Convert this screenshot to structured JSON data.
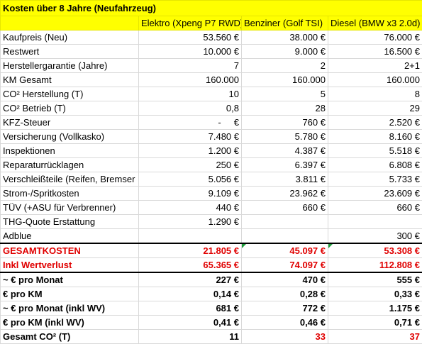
{
  "sheet": {
    "title": "Kosten über 8 Jahre (Neufahrzeug)",
    "columns": [
      "Elektro (Xpeng P7 RWD)",
      "Benziner (Golf TSI)",
      "Diesel (BMW x3 2.0d)"
    ],
    "rows": [
      {
        "label": "Kaufpreis (Neu)",
        "cells": [
          "53.560 €",
          "38.000 €",
          "76.000 €"
        ]
      },
      {
        "label": "Restwert",
        "cells": [
          "10.000 €",
          "9.000 €",
          "16.500 €"
        ]
      },
      {
        "label": "Herstellergarantie (Jahre)",
        "cells": [
          "7",
          "2",
          "2+1"
        ]
      },
      {
        "label": "KM Gesamt",
        "cells": [
          "160.000",
          "160.000",
          "160.000"
        ]
      },
      {
        "label": "CO² Herstellung (T)",
        "cells": [
          "10",
          "5",
          "8"
        ]
      },
      {
        "label": "CO² Betrieb (T)",
        "cells": [
          "0,8",
          "28",
          "29"
        ]
      },
      {
        "label": "KFZ-Steuer",
        "cells": [
          "-     €",
          "760 €",
          "2.520 €"
        ]
      },
      {
        "label": "Versicherung (Vollkasko)",
        "cells": [
          "7.480 €",
          "5.780 €",
          "8.160 €"
        ]
      },
      {
        "label": "Inspektionen",
        "cells": [
          "1.200 €",
          "4.387 €",
          "5.518 €"
        ]
      },
      {
        "label": "Reparaturrücklagen",
        "cells": [
          "250 €",
          "6.397 €",
          "6.808 €"
        ]
      },
      {
        "label": "Verschleißteile (Reifen, Bremser",
        "cells": [
          "5.056 €",
          "3.811 €",
          "5.733 €"
        ]
      },
      {
        "label": "Strom-/Spritkosten",
        "cells": [
          "9.109 €",
          "23.962 €",
          "23.609 €"
        ]
      },
      {
        "label": "TÜV (+ASU für Verbrenner)",
        "cells": [
          "440 €",
          "660 €",
          "660 €"
        ]
      },
      {
        "label": "THG-Quote Erstattung",
        "cells": [
          "1.290 €",
          null,
          null
        ]
      },
      {
        "label": "Adblue",
        "cells": [
          null,
          null,
          "300 €"
        ]
      },
      {
        "label": "GESAMTKOSTEN",
        "cells": [
          "21.805 €",
          "45.097 €",
          "53.308 €"
        ],
        "bold": true,
        "color": "#e00000"
      },
      {
        "label": "Inkl Wertverlust",
        "cells": [
          "65.365 €",
          "74.097 €",
          "112.808 €"
        ],
        "bold": true,
        "color": "#e00000"
      },
      {
        "label": "~ € pro Monat",
        "cells": [
          "227 €",
          "470 €",
          "555 €"
        ],
        "bold": true
      },
      {
        "label": "€ pro KM",
        "cells": [
          "0,14 €",
          "0,28 €",
          "0,33 €"
        ],
        "bold": true
      },
      {
        "label": "~ € pro Monat (inkl WV)",
        "cells": [
          "681 €",
          "772 €",
          "1.175 €"
        ],
        "bold": true
      },
      {
        "label": "€ pro KM (inkl WV)",
        "cells": [
          "0,41 €",
          "0,46 €",
          "0,71 €"
        ],
        "bold": true
      },
      {
        "label": "Gesamt CO² (T)",
        "cells": [
          "11",
          "33",
          "37"
        ],
        "bold": true,
        "cell_colors": [
          "#000000",
          "#e00000",
          "#e00000"
        ]
      }
    ]
  }
}
